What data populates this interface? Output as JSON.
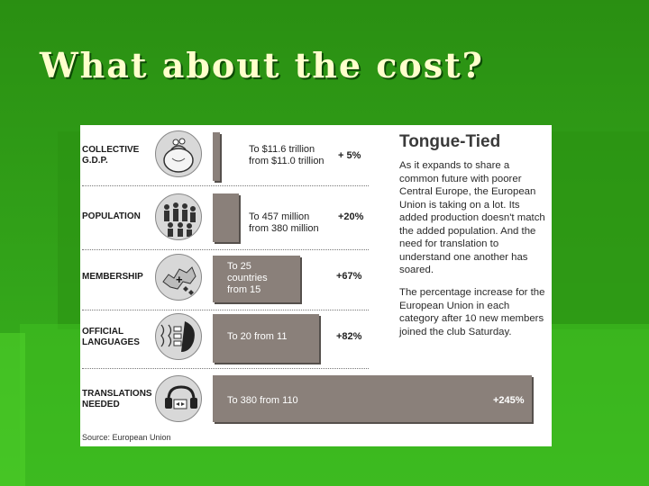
{
  "slide": {
    "title": "What about the cost?"
  },
  "graphic": {
    "title": "Tongue-Tied",
    "paragraph1": "As it expands to share a common future with poorer Central Europe, the European Union is taking on a lot. Its added production doesn't match the added population. And the need for translation to understand one another has soared.",
    "paragraph2": "The percentage increase for the European Union in each category after 10 new members joined the club Saturday.",
    "source": "Source: European Union",
    "rows": [
      {
        "label_line1": "COLLECTIVE",
        "label_line2": "G.D.P.",
        "detail_line1": "To $11.6 trillion",
        "detail_line2": "from $11.0 trillion",
        "detail_line3": "",
        "percent": "+ 5%",
        "percent_value": 5,
        "icon": "money-bag-icon"
      },
      {
        "label_line1": "POPULATION",
        "label_line2": "",
        "detail_line1": "To 457 million",
        "detail_line2": "from 380 million",
        "detail_line3": "",
        "percent": "+20%",
        "percent_value": 20,
        "icon": "crowd-icon"
      },
      {
        "label_line1": "MEMBERSHIP",
        "label_line2": "",
        "detail_line1": "To 25",
        "detail_line2": "countries",
        "detail_line3": "from 15",
        "percent": "+67%",
        "percent_value": 67,
        "icon": "europe-map-icon"
      },
      {
        "label_line1": "OFFICIAL",
        "label_line2": "LANGUAGES",
        "detail_line1": "To 20 from 11",
        "detail_line2": "",
        "detail_line3": "",
        "percent": "+82%",
        "percent_value": 82,
        "icon": "speaking-heads-icon"
      },
      {
        "label_line1": "TRANSLATIONS",
        "label_line2": "NEEDED",
        "detail_line1": "To 380 from 110",
        "detail_line2": "",
        "detail_line3": "",
        "percent": "+245%",
        "percent_value": 245,
        "icon": "headset-icon"
      }
    ]
  }
}
